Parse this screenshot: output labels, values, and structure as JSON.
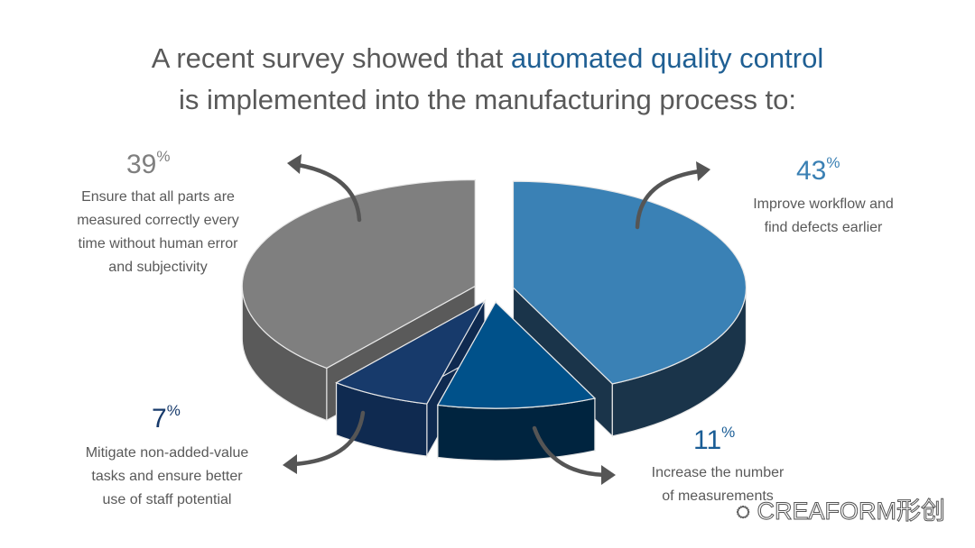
{
  "title": {
    "line1_prefix": "A recent survey showed that ",
    "line1_highlight": "automated quality control",
    "line2": "is implemented into the manufacturing process to:"
  },
  "chart_data": {
    "type": "pie",
    "style": "3d-exploded",
    "slices": [
      {
        "label": "Improve workflow and find defects earlier",
        "value": 43,
        "color": "#3a81b5",
        "side": "#1a344a",
        "pct_color": "#3a80b4"
      },
      {
        "label": "Increase the number of measurements",
        "value": 11,
        "color": "#00518a",
        "side": "#00243f",
        "pct_color": "#1a5d96"
      },
      {
        "label": "Mitigate non-added-value tasks and ensure better use of staff potential",
        "value": 7,
        "color": "#173a6b",
        "side": "#0f2a50",
        "pct_color": "#173a6b"
      },
      {
        "label": "Ensure that all parts are measured correctly every time without human error and subjectivity",
        "value": 39,
        "color": "#7f7f7f",
        "side": "#5a5a5a",
        "pct_color": "#7f7f7f"
      }
    ]
  },
  "labels": {
    "s43": {
      "pct": "43",
      "unit": "%",
      "lines": [
        "Improve workflow and",
        "find defects earlier"
      ]
    },
    "s11": {
      "pct": "11",
      "unit": "%",
      "lines": [
        "Increase the number",
        "of measurements"
      ]
    },
    "s7": {
      "pct": "7",
      "unit": "%",
      "lines": [
        "Mitigate non-added-value",
        "tasks and ensure better",
        "use of staff potential"
      ]
    },
    "s39": {
      "pct": "39",
      "unit": "%",
      "lines": [
        "Ensure that all parts are",
        "measured correctly every",
        "time without human error",
        "and subjectivity"
      ]
    }
  },
  "watermark": "CREAFORM形创"
}
